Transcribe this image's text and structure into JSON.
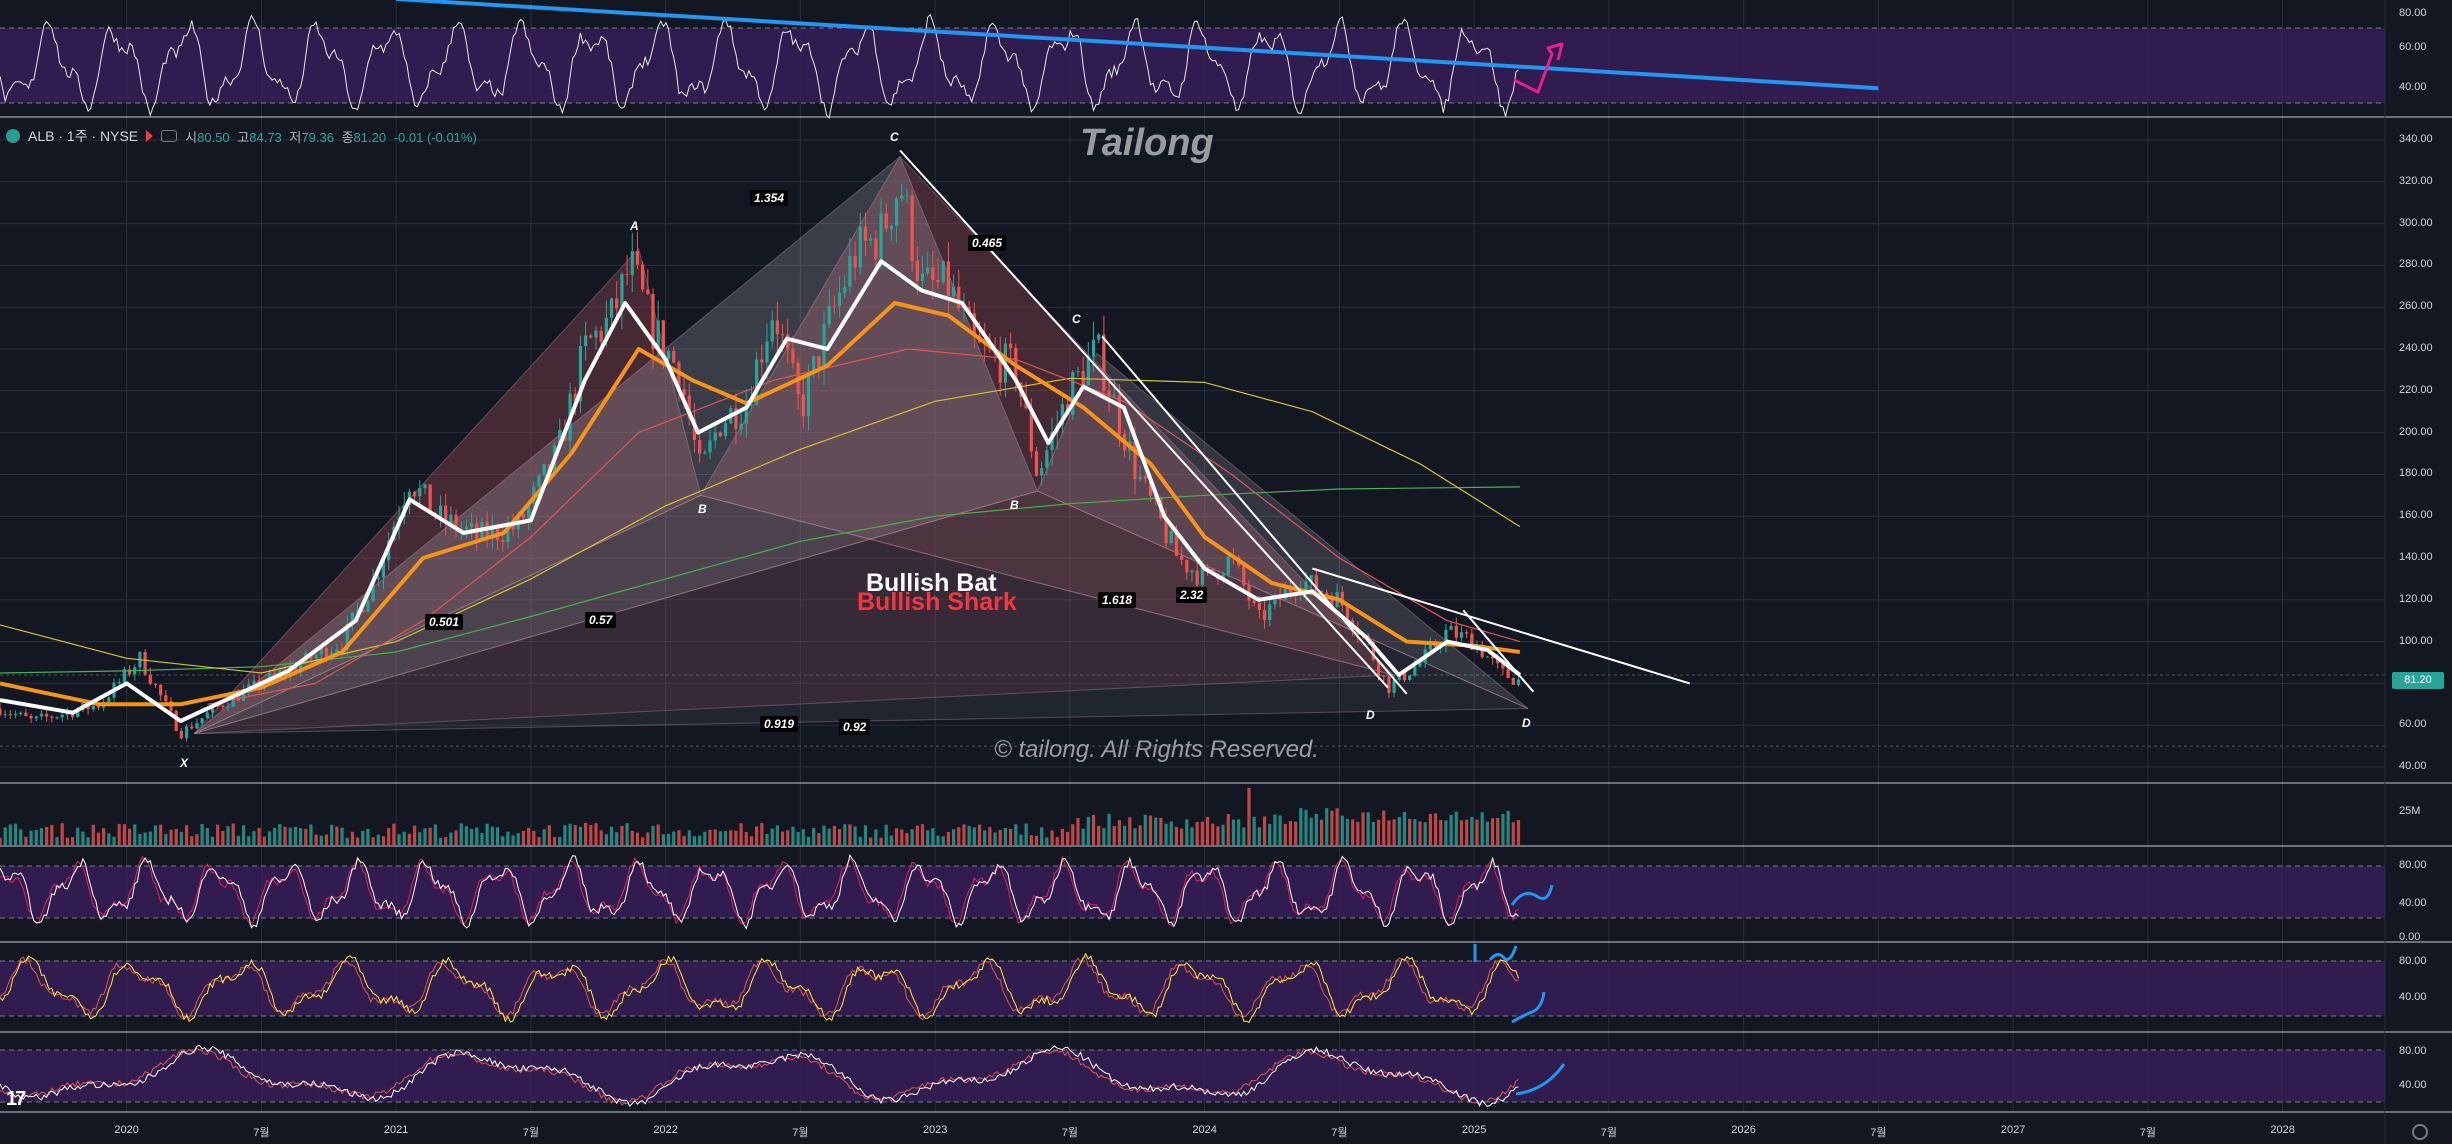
{
  "legend": {
    "symbol": "ALB · 1주 · NYSE",
    "open_label": "시",
    "open": "80.50",
    "high_label": "고",
    "high": "84.73",
    "low_label": "저",
    "low": "79.36",
    "close_label": "종",
    "close": "81.20",
    "change": "-0.01 (-0.01%)"
  },
  "watermark": {
    "title": "Tailong",
    "copyright": "© tailong. All Rights Reserved."
  },
  "patterns": {
    "bat": "Bullish Bat",
    "shark": "Bullish Shark"
  },
  "fib_labels": [
    "1.354",
    "0.465",
    "0.501",
    "0.57",
    "1.618",
    "2.32",
    "0.919",
    "0.92"
  ],
  "point_labels": [
    "X",
    "A",
    "B",
    "C",
    "D",
    "B",
    "C",
    "D"
  ],
  "last_price": "81.20",
  "colors": {
    "background": "#131722",
    "up": "#26a69a",
    "down": "#ef5350",
    "ema_white": "#ffffff",
    "ema_orange": "#f7931a",
    "trend_blue": "#2196f3",
    "osc_band": "#3b1f5e",
    "arrow_pink": "#e91e8c"
  },
  "chart_data": [
    {
      "type": "line",
      "name": "main-price-panel",
      "ylim": [
        40,
        340
      ],
      "y_ticks": [
        "340.00",
        "320.00",
        "300.00",
        "280.00",
        "260.00",
        "240.00",
        "220.00",
        "200.00",
        "180.00",
        "160.00",
        "140.00",
        "120.00",
        "100.00",
        "80.00",
        "60.00",
        "40.00"
      ],
      "x_ticks": [
        "2020",
        "7월",
        "2021",
        "7월",
        "2022",
        "7월",
        "2023",
        "7월",
        "2024",
        "7월",
        "2025",
        "7월",
        "2026",
        "7월",
        "2027",
        "7월",
        "2028"
      ],
      "x_tick_dates": [
        2020.0,
        2020.5,
        2021.0,
        2021.5,
        2022.0,
        2022.5,
        2023.0,
        2023.5,
        2024.0,
        2024.5,
        2025.0,
        2025.5,
        2026.0,
        2026.5,
        2027.0,
        2027.5,
        2028.0
      ],
      "xlim": [
        2019.53,
        2028.38
      ],
      "price_path": [
        [
          2019.53,
          68
        ],
        [
          2019.65,
          62
        ],
        [
          2019.78,
          66
        ],
        [
          2019.9,
          70
        ],
        [
          2020.05,
          92
        ],
        [
          2020.2,
          56
        ],
        [
          2020.35,
          70
        ],
        [
          2020.5,
          80
        ],
        [
          2020.65,
          90
        ],
        [
          2020.8,
          100
        ],
        [
          2020.92,
          130
        ],
        [
          2021.05,
          178
        ],
        [
          2021.15,
          160
        ],
        [
          2021.3,
          150
        ],
        [
          2021.45,
          155
        ],
        [
          2021.6,
          190
        ],
        [
          2021.7,
          240
        ],
        [
          2021.8,
          255
        ],
        [
          2021.87,
          280
        ],
        [
          2021.95,
          250
        ],
        [
          2022.05,
          230
        ],
        [
          2022.13,
          180
        ],
        [
          2022.2,
          205
        ],
        [
          2022.3,
          215
        ],
        [
          2022.4,
          260
        ],
        [
          2022.5,
          210
        ],
        [
          2022.6,
          250
        ],
        [
          2022.7,
          285
        ],
        [
          2022.8,
          295
        ],
        [
          2022.87,
          320
        ],
        [
          2022.95,
          270
        ],
        [
          2023.05,
          270
        ],
        [
          2023.15,
          240
        ],
        [
          2023.3,
          230
        ],
        [
          2023.38,
          180
        ],
        [
          2023.5,
          220
        ],
        [
          2023.6,
          240
        ],
        [
          2023.75,
          180
        ],
        [
          2023.9,
          140
        ],
        [
          2024.0,
          130
        ],
        [
          2024.1,
          140
        ],
        [
          2024.2,
          110
        ],
        [
          2024.35,
          130
        ],
        [
          2024.5,
          120
        ],
        [
          2024.6,
          100
        ],
        [
          2024.68,
          78
        ],
        [
          2024.8,
          90
        ],
        [
          2024.9,
          105
        ],
        [
          2025.0,
          100
        ],
        [
          2025.1,
          85
        ],
        [
          2025.17,
          81
        ]
      ],
      "fast_ema": [
        [
          2019.53,
          72
        ],
        [
          2019.8,
          66
        ],
        [
          2020.0,
          80
        ],
        [
          2020.2,
          62
        ],
        [
          2020.4,
          74
        ],
        [
          2020.6,
          86
        ],
        [
          2020.85,
          110
        ],
        [
          2021.05,
          168
        ],
        [
          2021.25,
          152
        ],
        [
          2021.5,
          158
        ],
        [
          2021.7,
          225
        ],
        [
          2021.85,
          262
        ],
        [
          2022.0,
          235
        ],
        [
          2022.12,
          200
        ],
        [
          2022.3,
          212
        ],
        [
          2022.45,
          245
        ],
        [
          2022.6,
          240
        ],
        [
          2022.8,
          282
        ],
        [
          2022.95,
          268
        ],
        [
          2023.1,
          262
        ],
        [
          2023.3,
          225
        ],
        [
          2023.42,
          195
        ],
        [
          2023.55,
          222
        ],
        [
          2023.7,
          212
        ],
        [
          2023.85,
          160
        ],
        [
          2024.0,
          135
        ],
        [
          2024.2,
          120
        ],
        [
          2024.4,
          124
        ],
        [
          2024.6,
          102
        ],
        [
          2024.72,
          84
        ],
        [
          2024.9,
          100
        ],
        [
          2025.05,
          96
        ],
        [
          2025.17,
          84
        ]
      ],
      "slow_ema": [
        [
          2019.53,
          80
        ],
        [
          2019.9,
          70
        ],
        [
          2020.2,
          70
        ],
        [
          2020.5,
          78
        ],
        [
          2020.8,
          95
        ],
        [
          2021.1,
          140
        ],
        [
          2021.4,
          152
        ],
        [
          2021.65,
          190
        ],
        [
          2021.9,
          240
        ],
        [
          2022.1,
          225
        ],
        [
          2022.3,
          214
        ],
        [
          2022.6,
          232
        ],
        [
          2022.85,
          262
        ],
        [
          2023.05,
          256
        ],
        [
          2023.3,
          232
        ],
        [
          2023.55,
          212
        ],
        [
          2023.8,
          185
        ],
        [
          2024.0,
          150
        ],
        [
          2024.25,
          128
        ],
        [
          2024.5,
          120
        ],
        [
          2024.75,
          100
        ],
        [
          2025.0,
          98
        ],
        [
          2025.17,
          95
        ]
      ],
      "ma_red": [
        [
          2020.3,
          70
        ],
        [
          2020.7,
          80
        ],
        [
          2021.1,
          110
        ],
        [
          2021.5,
          150
        ],
        [
          2021.9,
          200
        ],
        [
          2022.4,
          225
        ],
        [
          2022.9,
          240
        ],
        [
          2023.3,
          235
        ],
        [
          2023.7,
          215
        ],
        [
          2024.1,
          180
        ],
        [
          2024.5,
          140
        ],
        [
          2024.9,
          110
        ],
        [
          2025.17,
          100
        ]
      ],
      "ma_yellow": [
        [
          2019.53,
          108
        ],
        [
          2020.0,
          92
        ],
        [
          2020.5,
          85
        ],
        [
          2021.0,
          100
        ],
        [
          2021.5,
          130
        ],
        [
          2022.0,
          165
        ],
        [
          2022.5,
          192
        ],
        [
          2023.0,
          215
        ],
        [
          2023.5,
          226
        ],
        [
          2024.0,
          224
        ],
        [
          2024.4,
          210
        ],
        [
          2024.8,
          185
        ],
        [
          2025.17,
          155
        ]
      ],
      "ma_green": [
        [
          2019.53,
          85
        ],
        [
          2020.0,
          86
        ],
        [
          2020.5,
          88
        ],
        [
          2021.0,
          95
        ],
        [
          2021.5,
          112
        ],
        [
          2022.0,
          130
        ],
        [
          2022.5,
          148
        ],
        [
          2023.0,
          160
        ],
        [
          2023.5,
          166
        ],
        [
          2024.0,
          170
        ],
        [
          2024.5,
          173
        ],
        [
          2025.17,
          174
        ]
      ]
    },
    {
      "type": "line",
      "name": "top-oscillator",
      "ylim": [
        35,
        85
      ],
      "y_ticks": [
        "80.00",
        "60.00",
        "40.00"
      ],
      "trend_line": [
        [
          2021.0,
          84
        ],
        [
          2026.5,
          48
        ]
      ]
    },
    {
      "type": "bar",
      "name": "volume",
      "y_ticks": [
        "25M"
      ],
      "peak": 25
    },
    {
      "type": "line",
      "name": "stoch-1",
      "ylim": [
        0,
        100
      ],
      "y_ticks": [
        "80.00",
        "40.00",
        "0.00"
      ]
    },
    {
      "type": "line",
      "name": "stoch-2",
      "ylim": [
        0,
        100
      ],
      "y_ticks": [
        "80.00",
        "40.00"
      ]
    },
    {
      "type": "line",
      "name": "rsi-bottom",
      "ylim": [
        0,
        100
      ],
      "y_ticks": [
        "80.00",
        "40.00"
      ]
    }
  ]
}
